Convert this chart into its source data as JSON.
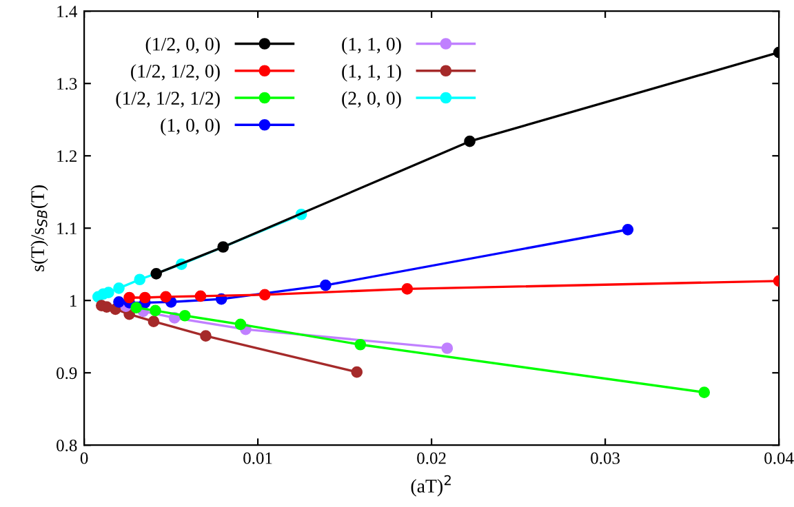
{
  "chart_data": {
    "type": "line",
    "xlabel": "(aT)$^{2}$",
    "ylabel": "s(T)/s$_{SB}$(T)",
    "xlim": [
      0,
      0.04
    ],
    "ylim": [
      0.8,
      1.4
    ],
    "xticks": [
      0,
      0.01,
      0.02,
      0.03,
      0.04
    ],
    "yticks": [
      0.8,
      0.9,
      {
        "value": 1.0,
        "label": "1"
      },
      1.1,
      1.2,
      1.3,
      1.4
    ],
    "marker": "circle",
    "line_style": "solid",
    "grid": false,
    "legend": "top left",
    "series": [
      {
        "name": "(1/2, 0, 0)",
        "color": "#000000",
        "x": [
          0.00415,
          0.008,
          0.0222,
          0.04
        ],
        "values": [
          1.037,
          1.074,
          1.22,
          1.343
        ]
      },
      {
        "name": "(1/2, 1/2, 0)",
        "color": "#ff0000",
        "x": [
          0.0026,
          0.0035,
          0.0047,
          0.0067,
          0.0104,
          0.0186,
          0.04
        ],
        "values": [
          1.004,
          1.004,
          1.005,
          1.006,
          1.008,
          1.016,
          1.027
        ]
      },
      {
        "name": "(1/2, 1/2, 1/2)",
        "color": "#00ff00",
        "x": [
          0.003,
          0.0041,
          0.0058,
          0.009,
          0.0159,
          0.0357
        ],
        "values": [
          0.99,
          0.986,
          0.979,
          0.967,
          0.939,
          0.873
        ]
      },
      {
        "name": "(1, 0, 0)",
        "color": "#0000ff",
        "x": [
          0.002,
          0.0026,
          0.0035,
          0.005,
          0.0079,
          0.0139,
          0.0313
        ],
        "values": [
          0.998,
          0.997,
          0.997,
          0.998,
          1.002,
          1.021,
          1.098
        ]
      },
      {
        "name": "(1, 1, 0)",
        "color": "#c080ff",
        "x": [
          0.0024,
          0.0034,
          0.0052,
          0.0093,
          0.0209
        ],
        "values": [
          0.992,
          0.985,
          0.976,
          0.96,
          0.934
        ]
      },
      {
        "name": "(1, 1, 1)",
        "color": "#a52a2a",
        "x": [
          0.001,
          0.0013,
          0.0018,
          0.0026,
          0.004,
          0.007,
          0.0157
        ],
        "values": [
          0.993,
          0.991,
          0.988,
          0.981,
          0.971,
          0.951,
          0.901
        ]
      },
      {
        "name": "(2, 0, 0)",
        "color": "#00ffff",
        "x": [
          0.0008,
          0.0011,
          0.0014,
          0.002,
          0.0032,
          0.0056,
          0.0125
        ],
        "values": [
          1.005,
          1.009,
          1.011,
          1.017,
          1.029,
          1.05,
          1.119
        ]
      }
    ]
  }
}
